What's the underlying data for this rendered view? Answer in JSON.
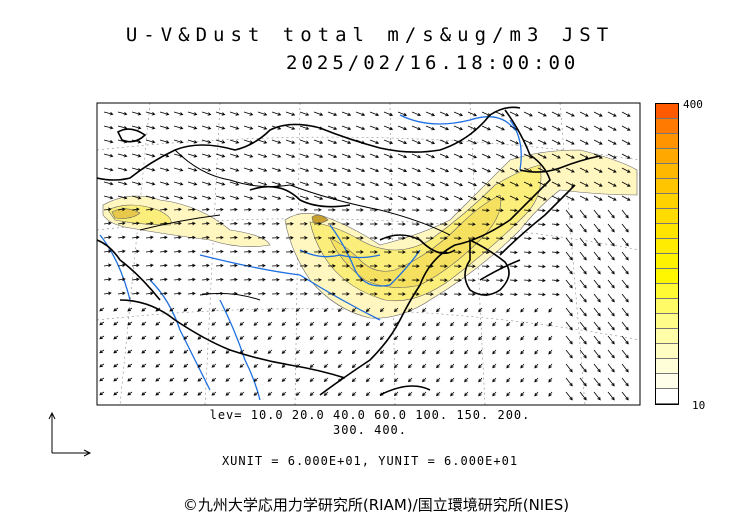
{
  "title": {
    "line1": "U-V&Dust total m/s&ug/m3 JST",
    "line2": "2025/02/16.18:00:00"
  },
  "colorbar": {
    "max_label": "400",
    "min_label": "10",
    "colors": [
      "#ff5a00",
      "#ff7a00",
      "#ff9400",
      "#ffa800",
      "#ffb800",
      "#ffc600",
      "#ffd200",
      "#ffdb00",
      "#ffe400",
      "#ffec00",
      "#fff200",
      "#fff700",
      "#fffa33",
      "#fffb66",
      "#fffc8a",
      "#fffda8",
      "#fffdc2",
      "#fffed8",
      "#fffeea",
      "#ffffff"
    ]
  },
  "levels": {
    "line1": "lev= 10.0 20.0 40.0 60.0 100. 150. 200.",
    "line2": "300. 400."
  },
  "units": "XUNIT = 6.000E+01, YUNIT = 6.000E+01",
  "copyright": "©九州大学応用力学研究所(RIAM)/国立環境研究所(NIES)",
  "icons": {
    "vector_scale": "vector-scale-icon"
  },
  "colors": {
    "dust_light": "#fff6c0",
    "dust_mid": "#fbee7a",
    "dust_heavy": "#e8c84a",
    "river": "#1e6fe0",
    "coast": "#000000"
  }
}
